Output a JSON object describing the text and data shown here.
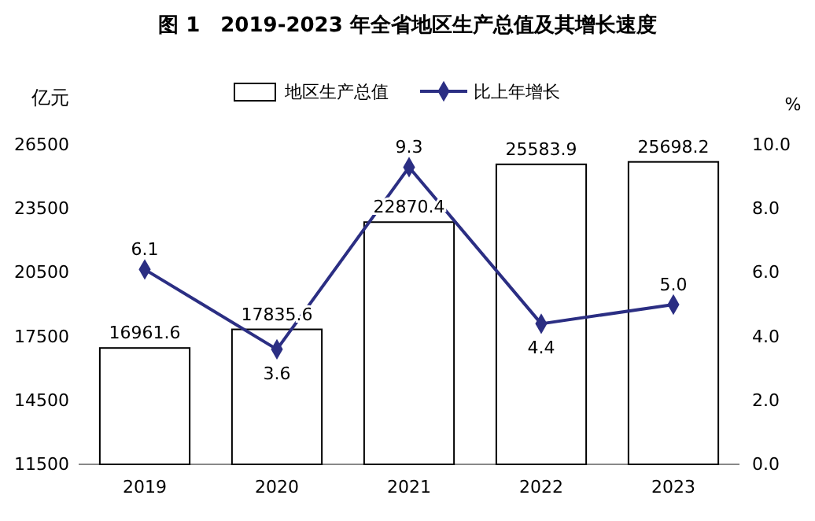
{
  "chart_data": {
    "type": "bar",
    "title": "图 1　2019-2023 年全省地区生产总值及其增长速度",
    "categories": [
      "2019",
      "2020",
      "2021",
      "2022",
      "2023"
    ],
    "series": [
      {
        "name": "地区生产总值",
        "color": "#ffffff",
        "values": [
          16961.6,
          17835.6,
          22870.4,
          25583.9,
          25698.2
        ],
        "value_labels": [
          "16961.6",
          "17835.6",
          "22870.4",
          "25583.9",
          "25698.2"
        ]
      },
      {
        "name": "比上年增长",
        "type": "line",
        "axis": "y2",
        "color": "#2b2e83",
        "marker": "diamond",
        "values": [
          6.1,
          3.6,
          9.3,
          4.4,
          5.0
        ],
        "value_labels": [
          "6.1",
          "3.6",
          "9.3",
          "4.4",
          "5.0"
        ]
      }
    ],
    "ylabel": "亿元",
    "y2label": "%",
    "ylim": [
      11500,
      26500
    ],
    "yticks": [
      11500,
      14500,
      17500,
      20500,
      23500,
      26500
    ],
    "y2lim": [
      0,
      10
    ],
    "y2ticks": [
      {
        "value": 0,
        "label": "0.0"
      },
      {
        "value": 2,
        "label": "2.0"
      },
      {
        "value": 4,
        "label": "4.0"
      },
      {
        "value": 6,
        "label": "6.0"
      },
      {
        "value": 8,
        "label": "8.0"
      },
      {
        "value": 10,
        "label": "10.0"
      }
    ],
    "legend": "top",
    "grid": false
  }
}
